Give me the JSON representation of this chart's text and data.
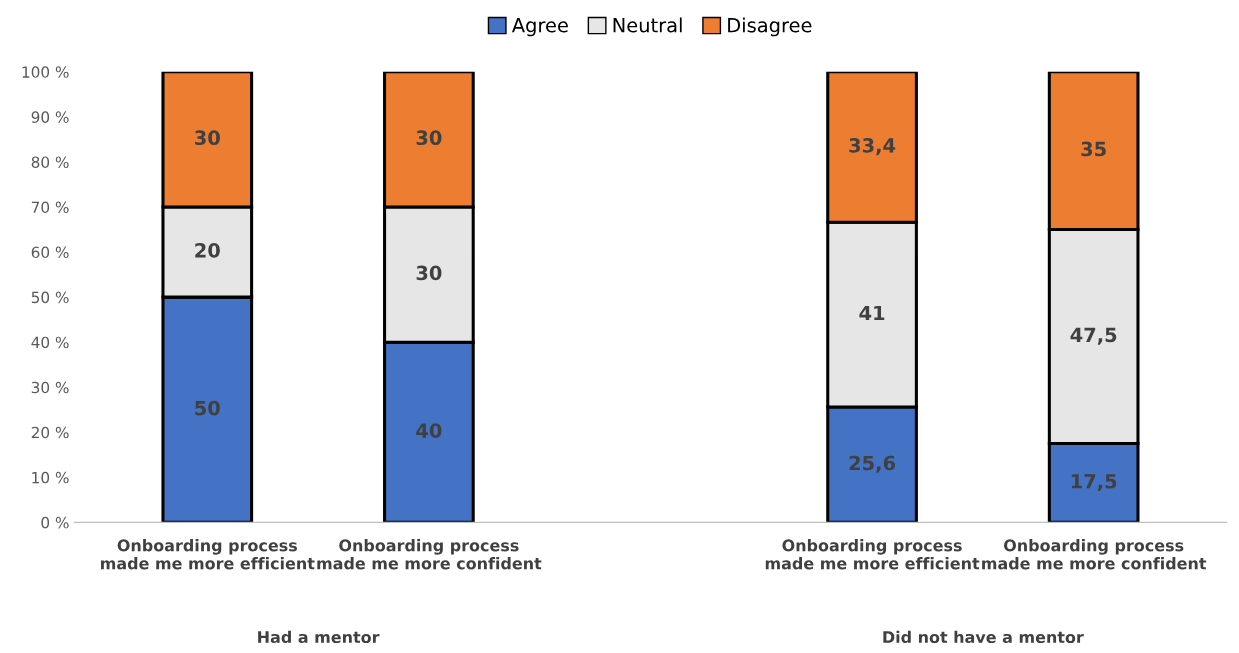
{
  "chart_data": {
    "type": "bar",
    "stacked": true,
    "categories": [
      "Onboarding process made me more efficient",
      "Onboarding process made me more confident",
      null,
      "Onboarding process made me more efficient",
      "Onboarding process made me more confident"
    ],
    "series": [
      {
        "name": "Agree",
        "color": "#4472c4",
        "values": [
          50,
          40,
          null,
          25.6,
          17.5
        ],
        "value_labels": [
          "50",
          "40",
          null,
          "25,6",
          "17,5"
        ]
      },
      {
        "name": "Neutral",
        "color": "#e7e6e6",
        "values": [
          20,
          30,
          null,
          41,
          47.5
        ],
        "value_labels": [
          "20",
          "30",
          null,
          "41",
          "47,5"
        ]
      },
      {
        "name": "Disagree",
        "color": "#ed7d31",
        "values": [
          30,
          30,
          null,
          33.4,
          35
        ],
        "value_labels": [
          "30",
          "30",
          null,
          "33,4",
          "35"
        ]
      }
    ],
    "ylim": [
      0,
      100
    ],
    "yticks": [
      {
        "value": 0,
        "label": "0 %"
      },
      {
        "value": 10,
        "label": "10 %"
      },
      {
        "value": 20,
        "label": "20 %"
      },
      {
        "value": 30,
        "label": "30 %"
      },
      {
        "value": 40,
        "label": "40 %"
      },
      {
        "value": 50,
        "label": "50 %"
      },
      {
        "value": 60,
        "label": "60 %"
      },
      {
        "value": 70,
        "label": "70 %"
      },
      {
        "value": 80,
        "label": "80 %"
      },
      {
        "value": 90,
        "label": "90 %"
      },
      {
        "value": 100,
        "label": "100 %"
      }
    ],
    "annotations": [
      "Had a mentor",
      "Did not have a mentor"
    ],
    "legend": "top",
    "grid": false
  }
}
